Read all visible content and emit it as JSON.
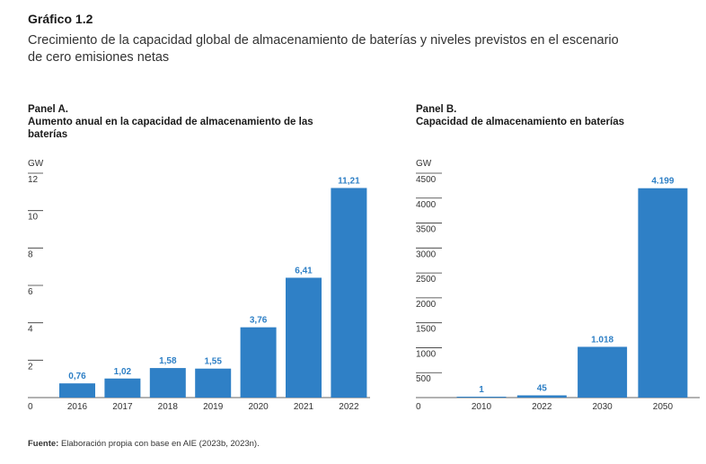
{
  "figure": {
    "title": "Gráfico 1.2",
    "subtitle": "Crecimiento de la capacidad global de almacenamiento de baterías y niveles previstos en el escenario de cero emisiones netas"
  },
  "source": {
    "label": "Fuente:",
    "text": "Elaboración propia con base en AIE (2023b, 2023n)."
  },
  "colors": {
    "bar": "#2f80c6",
    "label": "#2f80c6",
    "axis": "#333333"
  },
  "chart_data": [
    {
      "type": "bar",
      "panel": "Panel A.",
      "title": "Aumento anual en la capacidad de almacenamiento de las baterías",
      "ylabel": "GW",
      "ylim": [
        0,
        12
      ],
      "yticks": [
        "0",
        "2",
        "4",
        "6",
        "8",
        "10",
        "12"
      ],
      "categories": [
        "2016",
        "2017",
        "2018",
        "2019",
        "2020",
        "2021",
        "2022"
      ],
      "values": [
        0.76,
        1.02,
        1.58,
        1.55,
        3.76,
        6.41,
        11.21
      ],
      "data_labels": [
        "0,76",
        "1,02",
        "1,58",
        "1,55",
        "3,76",
        "6,41",
        "11,21"
      ]
    },
    {
      "type": "bar",
      "panel": "Panel B.",
      "title": "Capacidad de almacenamiento en baterías",
      "ylabel": "GW",
      "ylim": [
        0,
        4500
      ],
      "yticks": [
        "0",
        "500",
        "1000",
        "1500",
        "2000",
        "2500",
        "3000",
        "3500",
        "4000",
        "4500"
      ],
      "categories": [
        "2010",
        "2022",
        "2030",
        "2050"
      ],
      "values": [
        1,
        45,
        1018,
        4199
      ],
      "data_labels": [
        "1",
        "45",
        "1.018",
        "4.199"
      ]
    }
  ]
}
